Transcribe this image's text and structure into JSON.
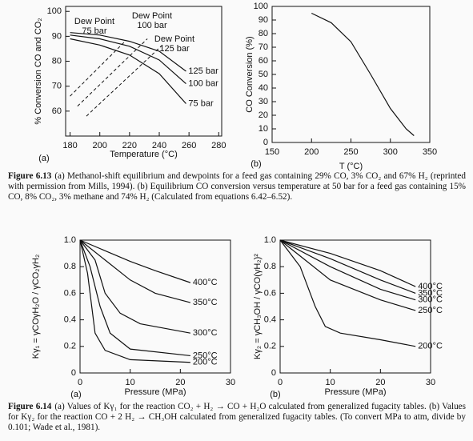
{
  "chart_data": [
    {
      "type": "line",
      "panel": "(a)",
      "xlabel": "Temperature (°C)",
      "ylabel": "% Conversion CO and CO₂",
      "color": "#111",
      "xlim": [
        177,
        282
      ],
      "ylim": [
        50,
        102
      ],
      "xticks": [
        180,
        200,
        220,
        240,
        260,
        280
      ],
      "yticks": [
        60,
        70,
        80,
        90,
        100
      ],
      "series": [
        {
          "name": "125 bar",
          "x": [
            180,
            200,
            220,
            240,
            258
          ],
          "values": [
            91.5,
            90.5,
            88,
            84,
            76
          ]
        },
        {
          "name": "100 bar",
          "x": [
            180,
            200,
            220,
            240,
            258
          ],
          "values": [
            90.5,
            89,
            86,
            80.5,
            71
          ]
        },
        {
          "name": "75 bar",
          "x": [
            180,
            200,
            220,
            240,
            258
          ],
          "values": [
            89,
            86.5,
            82.5,
            75,
            63
          ]
        }
      ],
      "dew_points": [
        {
          "label": [
            "Dew Point",
            "75 bar"
          ],
          "x": [
            180,
            217
          ],
          "values": [
            66,
            88
          ]
        },
        {
          "label": [
            "Dew Point",
            "100 bar"
          ],
          "x": [
            185,
            232
          ],
          "values": [
            62,
            89
          ]
        },
        {
          "label": [
            "Dew Point",
            "125 bar"
          ],
          "x": [
            191,
            243
          ],
          "values": [
            58,
            87
          ]
        }
      ]
    },
    {
      "type": "line",
      "panel": "(b)",
      "xlabel": "T (°C)",
      "ylabel": "CO Conversion (%)",
      "color": "#111",
      "xlim": [
        150,
        350
      ],
      "ylim": [
        0,
        100
      ],
      "xticks": [
        150,
        200,
        250,
        300,
        350
      ],
      "yticks": [
        0,
        10,
        20,
        30,
        40,
        50,
        60,
        70,
        80,
        90,
        100
      ],
      "series": [
        {
          "x": [
            200,
            225,
            250,
            275,
            300,
            320,
            330
          ],
          "values": [
            95,
            88,
            74,
            50,
            25,
            10,
            5
          ]
        }
      ]
    },
    {
      "type": "line",
      "panel": "(a)",
      "xlabel": "Pressure (MPa)",
      "ylabel": "Kγ₁ = γCOγH₂O / γCO₂γH₂",
      "color": "#111",
      "xlim": [
        0,
        30
      ],
      "ylim": [
        0,
        1
      ],
      "xticks": [
        0,
        10,
        20,
        30
      ],
      "yticks": [
        0,
        0.2,
        0.4,
        0.6,
        0.8,
        {
          "value": 1,
          "label": "1.0"
        }
      ],
      "series": [
        {
          "name": "400°C",
          "x": [
            0,
            5,
            10,
            15,
            22
          ],
          "values": [
            1,
            0.92,
            0.84,
            0.77,
            0.68
          ]
        },
        {
          "name": "350°C",
          "x": [
            0,
            5,
            10,
            15,
            22
          ],
          "values": [
            1,
            0.85,
            0.7,
            0.6,
            0.53
          ]
        },
        {
          "name": "300°C",
          "x": [
            0,
            3,
            5,
            8,
            12,
            22
          ],
          "values": [
            1,
            0.85,
            0.6,
            0.45,
            0.37,
            0.3
          ]
        },
        {
          "name": "250°C",
          "x": [
            0,
            2,
            4,
            6,
            10,
            22
          ],
          "values": [
            1,
            0.8,
            0.5,
            0.3,
            0.18,
            0.13
          ]
        },
        {
          "name": "200°C",
          "x": [
            0,
            1.5,
            3,
            5,
            10,
            22
          ],
          "values": [
            1,
            0.75,
            0.3,
            0.17,
            0.1,
            0.08
          ]
        }
      ]
    },
    {
      "type": "line",
      "panel": "(b)",
      "xlabel": "Pressure (MPa)",
      "ylabel": "Kγ₂ = γCH₃OH / γCO(γH₂)²",
      "color": "#111",
      "xlim": [
        0,
        30
      ],
      "ylim": [
        0,
        1
      ],
      "xticks": [
        0,
        10,
        20,
        30
      ],
      "yticks": [
        0,
        0.2,
        0.4,
        0.6,
        0.8,
        {
          "value": 1,
          "label": "1.0"
        }
      ],
      "series": [
        {
          "name": "400°C",
          "x": [
            0,
            10,
            20,
            27
          ],
          "values": [
            1,
            0.9,
            0.77,
            0.65
          ]
        },
        {
          "name": "350°C",
          "x": [
            0,
            10,
            20,
            27
          ],
          "values": [
            1,
            0.86,
            0.7,
            0.6
          ]
        },
        {
          "name": "300°C",
          "x": [
            0,
            10,
            20,
            27
          ],
          "values": [
            1,
            0.8,
            0.63,
            0.55
          ]
        },
        {
          "name": "250°C",
          "x": [
            0,
            5,
            10,
            20,
            27
          ],
          "values": [
            1,
            0.85,
            0.7,
            0.55,
            0.47
          ]
        },
        {
          "name": "200°C",
          "x": [
            0,
            4,
            7,
            9,
            12,
            20,
            27
          ],
          "values": [
            1,
            0.8,
            0.5,
            0.35,
            0.3,
            0.25,
            0.2
          ]
        }
      ]
    }
  ],
  "captions": [
    {
      "label": "Figure 6.13",
      "text": "(a) Methanol-shift equilibrium and dewpoints for a feed gas containing 29% CO, 3% CO₂ and 67% H₂ (reprinted with permission from Mills, 1994). (b) Equilibrium CO conversion versus temperature at 50 bar for a feed gas containing 15% CO, 8% CO₂, 3% methane and 74% H₂ (Calculated from equations 6.42–6.52)."
    },
    {
      "label": "Figure 6.14",
      "text": "(a) Values of Kγ₁ for the reaction CO₂ + H₂ → CO + H₂O calculated from generalized fugacity tables. (b) Values for Kγ₂ for the reaction CO + 2 H₂ → CH₃OH calculated from generalized fugacity tables. (To convert MPa to atm, divide by 0.101; Wade et al., 1981)."
    }
  ]
}
